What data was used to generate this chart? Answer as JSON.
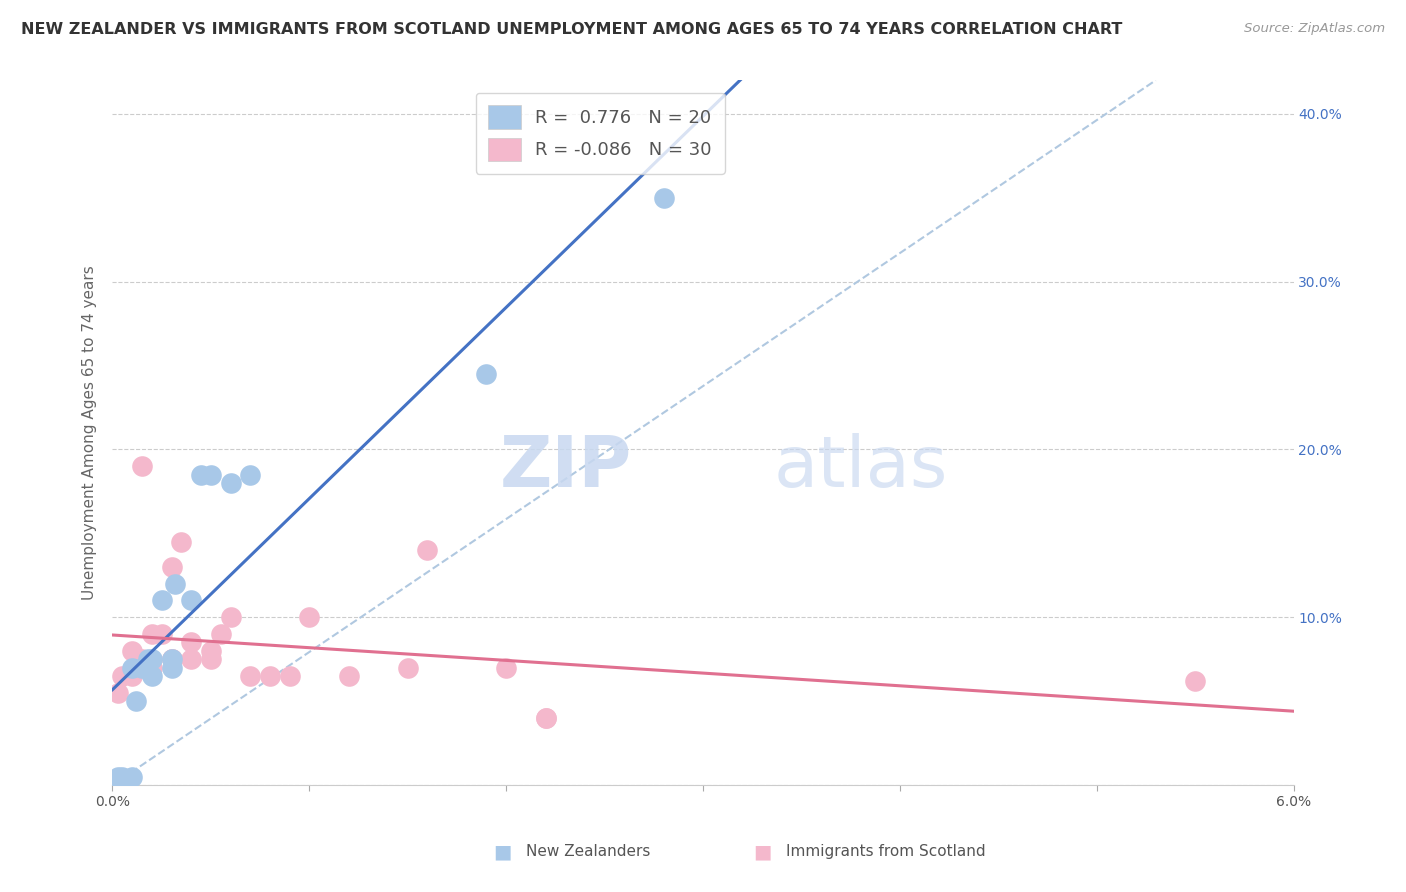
{
  "title": "NEW ZEALANDER VS IMMIGRANTS FROM SCOTLAND UNEMPLOYMENT AMONG AGES 65 TO 74 YEARS CORRELATION CHART",
  "source": "Source: ZipAtlas.com",
  "ylabel": "Unemployment Among Ages 65 to 74 years",
  "background_color": "#ffffff",
  "watermark_zip": "ZIP",
  "watermark_atlas": "atlas",
  "xlim": [
    0.0,
    0.06
  ],
  "ylim": [
    0.0,
    0.42
  ],
  "yticks": [
    0.0,
    0.1,
    0.2,
    0.3,
    0.4
  ],
  "ytick_labels": [
    "",
    "10.0%",
    "20.0%",
    "30.0%",
    "40.0%"
  ],
  "xticks": [
    0.0,
    0.01,
    0.02,
    0.03,
    0.04,
    0.05,
    0.06
  ],
  "xtick_labels": [
    "0.0%",
    "",
    "",
    "",
    "",
    "",
    "6.0%"
  ],
  "nz_color": "#a8c8e8",
  "scot_color": "#f4b8cc",
  "nz_line_color": "#4472c4",
  "scot_line_color": "#e07090",
  "dashed_line_color": "#b0c8e0",
  "R_nz": 0.776,
  "N_nz": 20,
  "R_scot": -0.086,
  "N_scot": 30,
  "nz_x": [
    0.0003,
    0.0005,
    0.001,
    0.001,
    0.0012,
    0.0015,
    0.0018,
    0.002,
    0.002,
    0.0025,
    0.003,
    0.003,
    0.0032,
    0.004,
    0.0045,
    0.005,
    0.006,
    0.007,
    0.019,
    0.028
  ],
  "nz_y": [
    0.005,
    0.005,
    0.005,
    0.07,
    0.05,
    0.07,
    0.075,
    0.065,
    0.075,
    0.11,
    0.07,
    0.075,
    0.12,
    0.11,
    0.185,
    0.185,
    0.18,
    0.185,
    0.245,
    0.35
  ],
  "scot_x": [
    0.0003,
    0.0005,
    0.001,
    0.001,
    0.0015,
    0.0015,
    0.002,
    0.002,
    0.0025,
    0.003,
    0.003,
    0.003,
    0.0035,
    0.004,
    0.004,
    0.005,
    0.005,
    0.0055,
    0.006,
    0.007,
    0.008,
    0.009,
    0.01,
    0.012,
    0.015,
    0.016,
    0.02,
    0.022,
    0.022,
    0.055
  ],
  "scot_y": [
    0.055,
    0.065,
    0.065,
    0.08,
    0.075,
    0.19,
    0.07,
    0.09,
    0.09,
    0.075,
    0.075,
    0.13,
    0.145,
    0.075,
    0.085,
    0.075,
    0.08,
    0.09,
    0.1,
    0.065,
    0.065,
    0.065,
    0.1,
    0.065,
    0.07,
    0.14,
    0.07,
    0.04,
    0.04,
    0.062
  ],
  "title_fontsize": 11.5,
  "axis_label_fontsize": 11,
  "tick_fontsize": 10,
  "legend_fontsize": 13,
  "watermark_fontsize": 52,
  "source_fontsize": 9.5
}
